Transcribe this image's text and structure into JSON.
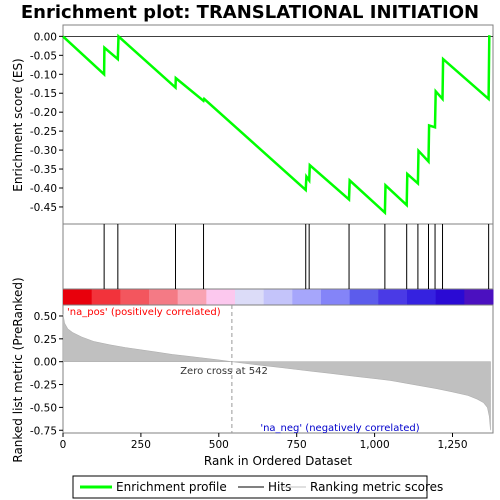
{
  "chart_data": {
    "type": "line",
    "title": "Enrichment plot: TRANSLATIONAL INITIATION",
    "xlabel": "Rank in Ordered Dataset",
    "ylabel_top": "Enrichment score (ES)",
    "ylabel_bottom": "Ranked list metric (PreRanked)",
    "xlim": [
      0,
      1380
    ],
    "x_ticks": [
      0,
      250,
      500,
      750,
      1000,
      1250
    ],
    "x_tick_labels": [
      "0",
      "250",
      "500",
      "750",
      "1,000",
      "1,250"
    ],
    "es_ylim": [
      -0.495,
      0.03
    ],
    "es_ticks": [
      0.0,
      -0.05,
      -0.1,
      -0.15,
      -0.2,
      -0.25,
      -0.3,
      -0.35,
      -0.4,
      -0.45
    ],
    "es_tick_labels": [
      "0.00",
      "-0.05",
      "-0.10",
      "-0.15",
      "-0.20",
      "-0.25",
      "-0.30",
      "-0.35",
      "-0.40",
      "-0.45"
    ],
    "metric_ylim": [
      -0.78,
      0.62
    ],
    "metric_ticks": [
      0.5,
      0.25,
      0.0,
      -0.25,
      -0.5,
      -0.75
    ],
    "metric_tick_labels": [
      "0.50",
      "0.25",
      "0.00",
      "-0.25",
      "-0.50",
      "-0.75"
    ],
    "enrichment_profile": {
      "name": "Enrichment profile",
      "color": "#00ff00",
      "x": [
        0,
        132,
        133,
        176,
        178,
        361,
        362,
        451,
        453,
        779,
        781,
        790,
        792,
        918,
        920,
        1033,
        1035,
        1103,
        1105,
        1139,
        1141,
        1173,
        1175,
        1194,
        1196,
        1218,
        1220,
        1366,
        1368
      ],
      "y": [
        0.0,
        -0.1,
        -0.03,
        -0.06,
        0.0,
        -0.135,
        -0.11,
        -0.17,
        -0.165,
        -0.405,
        -0.37,
        -0.38,
        -0.34,
        -0.43,
        -0.38,
        -0.465,
        -0.393,
        -0.445,
        -0.363,
        -0.388,
        -0.302,
        -0.33,
        -0.235,
        -0.24,
        -0.145,
        -0.165,
        -0.06,
        -0.165,
        0.003
      ]
    },
    "hits": [
      132,
      176,
      361,
      451,
      779,
      790,
      918,
      1033,
      1103,
      1139,
      1173,
      1194,
      1218,
      1366
    ],
    "hits_label": "Hits",
    "ranking_metric": {
      "name": "Ranking metric scores",
      "color": "#c0c0c0",
      "x": [
        0,
        5,
        15,
        30,
        60,
        100,
        150,
        200,
        250,
        300,
        350,
        400,
        450,
        500,
        542,
        600,
        650,
        700,
        750,
        800,
        850,
        900,
        950,
        1000,
        1050,
        1100,
        1150,
        1200,
        1250,
        1300,
        1330,
        1350,
        1362,
        1368,
        1372
      ],
      "y": [
        0.52,
        0.42,
        0.36,
        0.32,
        0.27,
        0.22,
        0.185,
        0.155,
        0.13,
        0.105,
        0.08,
        0.06,
        0.04,
        0.02,
        0.0,
        -0.025,
        -0.045,
        -0.065,
        -0.085,
        -0.105,
        -0.125,
        -0.145,
        -0.165,
        -0.185,
        -0.205,
        -0.235,
        -0.265,
        -0.295,
        -0.33,
        -0.37,
        -0.41,
        -0.45,
        -0.5,
        -0.6,
        -0.75
      ]
    },
    "zero_cross": {
      "rank": 542,
      "label": "Zero cross at 542"
    },
    "pos_label": "'na_pos' (positively correlated)",
    "neg_label": "'na_neg' (negatively correlated)",
    "colors": {
      "profile": "#00ff00",
      "hit": "#000000",
      "metric_fill": "#c0c0c0",
      "pos_text": "#ff0000",
      "neg_text": "#0000cc",
      "zero_line": "#999999"
    },
    "gradient_colors": [
      "#e8000c",
      "#f2333b",
      "#f3565e",
      "#f47a85",
      "#f9a3b3",
      "#fcc8ee",
      "#dcdcf8",
      "#c4c4fa",
      "#a6a6fb",
      "#8484f8",
      "#5c5cec",
      "#4a3ae6",
      "#3522e0",
      "#2a0ad4",
      "#4b10c0"
    ]
  },
  "legend": {
    "items": [
      {
        "name": "Enrichment profile",
        "color": "#00ff00",
        "style": "line"
      },
      {
        "name": "Hits",
        "color": "#000000",
        "style": "line"
      },
      {
        "name": "Ranking metric scores",
        "color": "#c0c0c0",
        "style": "line"
      }
    ]
  }
}
